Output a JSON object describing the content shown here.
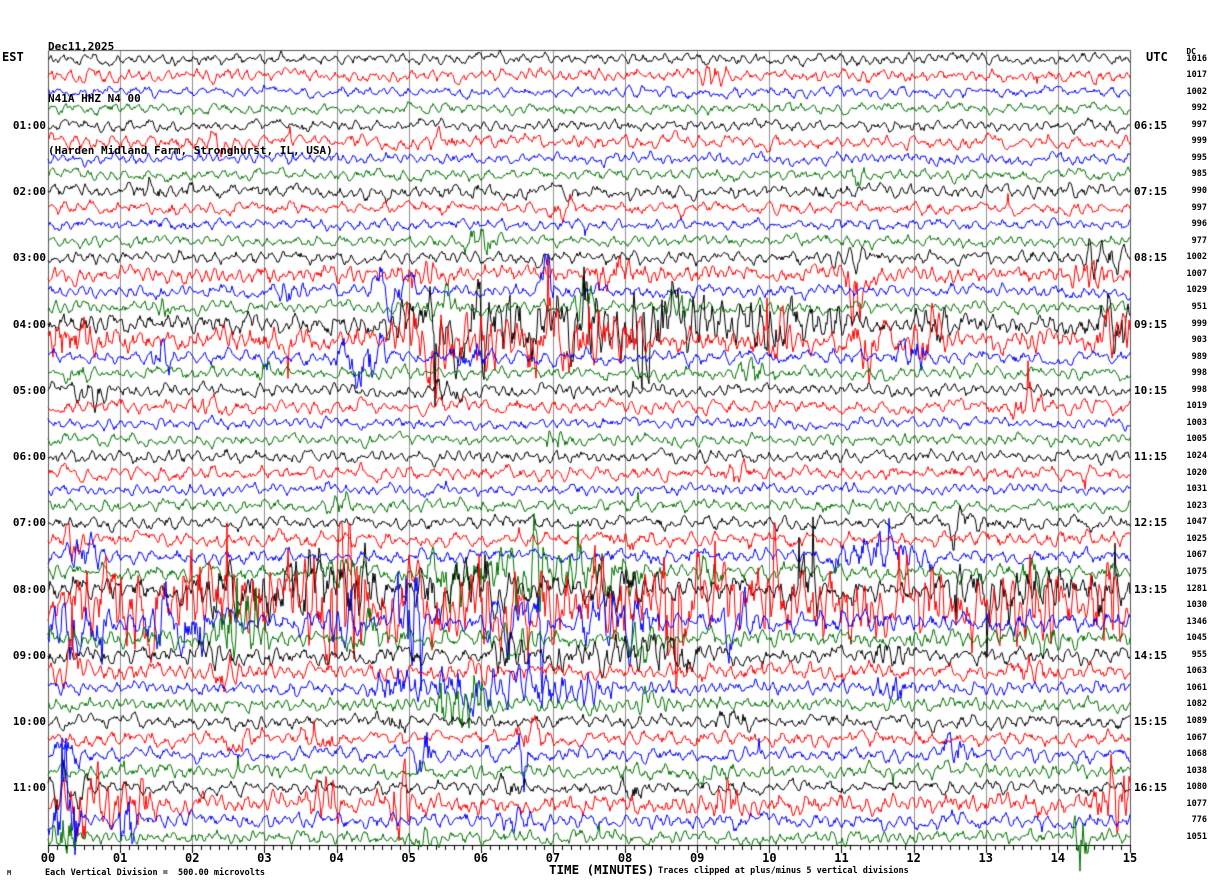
{
  "header": {
    "date": "Dec11,2025",
    "station": "N41A HHZ N4 00",
    "location": "(Harden Midland Farm, Stronghurst, IL, USA)"
  },
  "axes": {
    "left_label": "EST",
    "right_label": "UTC",
    "dc_label": "DC",
    "x_title": "TIME (MINUTES)",
    "x_ticks": [
      "00",
      "01",
      "02",
      "03",
      "04",
      "05",
      "06",
      "07",
      "08",
      "09",
      "10",
      "11",
      "12",
      "13",
      "14",
      "15"
    ]
  },
  "footer": {
    "left_note": "Each Vertical Division =  500.00 microvolts",
    "right_note": "Traces clipped at plus/minus 5 vertical divisions",
    "watermark": "M"
  },
  "chart_data": {
    "type": "line",
    "kind": "helicorder-seismogram",
    "title": "N41A HHZ N4 00 seismogram, Dec11,2025",
    "xlabel": "TIME (MINUTES)",
    "x_range": [
      0,
      15
    ],
    "minutes_per_row": 15,
    "rows_per_hour": 4,
    "clip_divisions": 5,
    "microvolts_per_division": 500.0,
    "grid": true,
    "colors": {
      "black": "#000000",
      "red": "#ff0000",
      "blue": "#0000ff",
      "green": "#007300",
      "grid": "#8f8f8f",
      "border": "#555555",
      "axis": "#000000"
    },
    "rows": [
      {
        "color": "black",
        "dc": 1016,
        "est": "",
        "utc": "",
        "amp": 5,
        "bursts": []
      },
      {
        "color": "red",
        "dc": 1017,
        "est": "",
        "utc": "",
        "amp": 5.5,
        "bursts": [
          [
            9.1,
            9.4,
            10
          ]
        ]
      },
      {
        "color": "blue",
        "dc": 1002,
        "est": "",
        "utc": "",
        "amp": 5,
        "bursts": []
      },
      {
        "color": "green",
        "dc": 992,
        "est": "",
        "utc": "",
        "amp": 5,
        "bursts": []
      },
      {
        "color": "black",
        "dc": 997,
        "est": "01:00",
        "utc": "06:15",
        "amp": 5,
        "bursts": []
      },
      {
        "color": "red",
        "dc": 999,
        "est": "",
        "utc": "",
        "amp": 6,
        "bursts": [
          [
            2.2,
            2.5,
            9
          ],
          [
            5.3,
            5.6,
            9
          ]
        ]
      },
      {
        "color": "blue",
        "dc": 995,
        "est": "",
        "utc": "",
        "amp": 5,
        "bursts": []
      },
      {
        "color": "green",
        "dc": 985,
        "est": "",
        "utc": "",
        "amp": 5,
        "bursts": [
          [
            11.1,
            11.3,
            8
          ]
        ]
      },
      {
        "color": "black",
        "dc": 990,
        "est": "02:00",
        "utc": "07:15",
        "amp": 6,
        "bursts": [
          [
            1.3,
            1.6,
            8
          ]
        ]
      },
      {
        "color": "red",
        "dc": 997,
        "est": "",
        "utc": "",
        "amp": 5.5,
        "bursts": [
          [
            7.0,
            7.3,
            8
          ]
        ]
      },
      {
        "color": "blue",
        "dc": 996,
        "est": "",
        "utc": "",
        "amp": 5,
        "bursts": []
      },
      {
        "color": "green",
        "dc": 977,
        "est": "",
        "utc": "",
        "amp": 5,
        "bursts": [
          [
            5.8,
            6.2,
            14
          ]
        ]
      },
      {
        "color": "black",
        "dc": 1002,
        "est": "03:00",
        "utc": "08:15",
        "amp": 5.5,
        "bursts": [
          [
            10.9,
            11.3,
            10
          ],
          [
            14.3,
            14.9,
            12
          ]
        ]
      },
      {
        "color": "red",
        "dc": 1007,
        "est": "",
        "utc": "",
        "amp": 7,
        "bursts": [
          [
            4.9,
            5.3,
            16
          ],
          [
            7.6,
            8.1,
            18
          ],
          [
            11.15,
            11.3,
            70
          ],
          [
            14.2,
            14.6,
            18
          ]
        ]
      },
      {
        "color": "blue",
        "dc": 1029,
        "est": "",
        "utc": "",
        "amp": 5.5,
        "bursts": [
          [
            3.2,
            3.5,
            12
          ],
          [
            4.5,
            5.1,
            20
          ],
          [
            6.85,
            6.95,
            45
          ]
        ]
      },
      {
        "color": "green",
        "dc": 951,
        "est": "",
        "utc": "",
        "amp": 5.5,
        "bursts": [
          [
            1.5,
            1.7,
            12
          ],
          [
            5.3,
            5.6,
            18
          ],
          [
            7.35,
            7.5,
            55
          ],
          [
            8.6,
            8.9,
            16
          ]
        ]
      },
      {
        "color": "black",
        "dc": 999,
        "est": "04:00",
        "utc": "09:15",
        "amp": 9,
        "bursts": [
          [
            4.6,
            5.2,
            18
          ],
          [
            5.3,
            6.6,
            34
          ],
          [
            6.7,
            9.3,
            30
          ],
          [
            8.15,
            8.25,
            85
          ],
          [
            9.4,
            11,
            13
          ],
          [
            12,
            12.6,
            16
          ],
          [
            14.6,
            15,
            22
          ]
        ]
      },
      {
        "color": "red",
        "dc": 903,
        "est": "",
        "utc": "",
        "amp": 10,
        "bursts": [
          [
            0,
            0.6,
            18
          ],
          [
            4.8,
            5.6,
            30
          ],
          [
            5.7,
            8.3,
            24
          ],
          [
            9.9,
            10.3,
            18
          ],
          [
            11.2,
            11.6,
            28
          ],
          [
            12.0,
            12.4,
            22
          ],
          [
            14.5,
            15,
            26
          ]
        ]
      },
      {
        "color": "blue",
        "dc": 989,
        "est": "",
        "utc": "",
        "amp": 6,
        "bursts": [
          [
            1.4,
            1.8,
            14
          ],
          [
            4.0,
            4.7,
            22
          ],
          [
            5.6,
            6.0,
            14
          ],
          [
            11.8,
            12.2,
            18
          ]
        ]
      },
      {
        "color": "green",
        "dc": 998,
        "est": "",
        "utc": "",
        "amp": 5.5,
        "bursts": [
          [
            0.3,
            0.5,
            12
          ],
          [
            2.9,
            3.2,
            14
          ],
          [
            9.6,
            9.9,
            12
          ]
        ]
      },
      {
        "color": "black",
        "dc": 998,
        "est": "05:00",
        "utc": "10:15",
        "amp": 5.5,
        "bursts": [
          [
            0.4,
            0.8,
            12
          ],
          [
            5.4,
            5.7,
            10
          ]
        ]
      },
      {
        "color": "red",
        "dc": 1019,
        "est": "",
        "utc": "",
        "amp": 6,
        "bursts": [
          [
            2.1,
            2.4,
            12
          ],
          [
            13.4,
            13.8,
            13
          ]
        ]
      },
      {
        "color": "blue",
        "dc": 1003,
        "est": "",
        "utc": "",
        "amp": 5,
        "bursts": []
      },
      {
        "color": "green",
        "dc": 1005,
        "est": "",
        "utc": "",
        "amp": 5,
        "bursts": [
          [
            6.9,
            7.2,
            10
          ]
        ]
      },
      {
        "color": "black",
        "dc": 1024,
        "est": "06:00",
        "utc": "11:15",
        "amp": 5.5,
        "bursts": []
      },
      {
        "color": "red",
        "dc": 1020,
        "est": "",
        "utc": "",
        "amp": 6,
        "bursts": [
          [
            9.4,
            9.7,
            11
          ]
        ]
      },
      {
        "color": "blue",
        "dc": 1031,
        "est": "",
        "utc": "",
        "amp": 5,
        "bursts": []
      },
      {
        "color": "green",
        "dc": 1023,
        "est": "",
        "utc": "",
        "amp": 5.5,
        "bursts": [
          [
            3.9,
            4.2,
            10
          ]
        ]
      },
      {
        "color": "black",
        "dc": 1047,
        "est": "07:00",
        "utc": "12:15",
        "amp": 6,
        "bursts": [
          [
            12.5,
            12.9,
            10
          ]
        ]
      },
      {
        "color": "red",
        "dc": 1025,
        "est": "",
        "utc": "",
        "amp": 6.5,
        "bursts": [
          [
            0.25,
            0.45,
            35
          ],
          [
            7.8,
            8.2,
            11
          ]
        ]
      },
      {
        "color": "blue",
        "dc": 1067,
        "est": "",
        "utc": "",
        "amp": 6.5,
        "bursts": [
          [
            0.3,
            0.7,
            14
          ],
          [
            10.9,
            12.3,
            16
          ]
        ]
      },
      {
        "color": "green",
        "dc": 1075,
        "est": "",
        "utc": "",
        "amp": 7,
        "bursts": [
          [
            3.8,
            4.4,
            14
          ],
          [
            5.2,
            8.2,
            22
          ],
          [
            6.75,
            6.85,
            60
          ],
          [
            9.0,
            9.3,
            16
          ],
          [
            13.5,
            13.9,
            15
          ]
        ]
      },
      {
        "color": "black",
        "dc": 1281,
        "est": "08:00",
        "utc": "13:15",
        "amp": 11,
        "bursts": [
          [
            2.2,
            4.6,
            26
          ],
          [
            5.0,
            6.5,
            16
          ],
          [
            7.5,
            8.2,
            14
          ],
          [
            10.3,
            10.7,
            18
          ],
          [
            12.5,
            14.3,
            18
          ],
          [
            14.4,
            15,
            16
          ]
        ]
      },
      {
        "color": "red",
        "dc": 1030,
        "est": "",
        "utc": "",
        "amp": 15,
        "bursts": [
          [
            0.4,
            1.6,
            30
          ],
          [
            1.8,
            4.5,
            38
          ],
          [
            3.9,
            4.3,
            85
          ],
          [
            4.6,
            9.5,
            26
          ],
          [
            8.5,
            8.8,
            85
          ],
          [
            9.6,
            12.0,
            24
          ],
          [
            12.1,
            14.2,
            26
          ],
          [
            14.5,
            14.9,
            60
          ]
        ]
      },
      {
        "color": "blue",
        "dc": 1346,
        "est": "",
        "utc": "",
        "amp": 9,
        "bursts": [
          [
            0.0,
            0.8,
            32
          ],
          [
            1.4,
            2.2,
            22
          ],
          [
            3.9,
            4.3,
            22
          ],
          [
            4.85,
            5.15,
            85
          ],
          [
            6.1,
            6.9,
            28
          ],
          [
            7.4,
            8.3,
            22
          ],
          [
            9.3,
            9.7,
            14
          ]
        ]
      },
      {
        "color": "green",
        "dc": 1045,
        "est": "",
        "utc": "",
        "amp": 7.5,
        "bursts": [
          [
            2.3,
            3.0,
            38
          ],
          [
            4.2,
            4.6,
            18
          ],
          [
            6.3,
            6.7,
            14
          ],
          [
            8.0,
            8.4,
            14
          ],
          [
            13.6,
            14.0,
            16
          ]
        ]
      },
      {
        "color": "black",
        "dc": 955,
        "est": "09:00",
        "utc": "14:15",
        "amp": 7.5,
        "bursts": [
          [
            2.0,
            2.4,
            11
          ],
          [
            6.2,
            6.7,
            14
          ],
          [
            7.0,
            9.0,
            12
          ],
          [
            11.5,
            11.9,
            11
          ]
        ]
      },
      {
        "color": "red",
        "dc": 1063,
        "est": "",
        "utc": "",
        "amp": 7,
        "bursts": [
          [
            0.1,
            0.5,
            26
          ],
          [
            2.3,
            2.7,
            13
          ],
          [
            5.8,
            6.2,
            11
          ],
          [
            13.5,
            13.8,
            14
          ]
        ]
      },
      {
        "color": "blue",
        "dc": 1061,
        "est": "",
        "utc": "",
        "amp": 6,
        "bursts": [
          [
            4.5,
            7.8,
            16
          ],
          [
            11.5,
            11.9,
            10
          ]
        ]
      },
      {
        "color": "green",
        "dc": 1082,
        "est": "",
        "utc": "",
        "amp": 6,
        "bursts": [
          [
            5.3,
            6.1,
            26
          ],
          [
            8.2,
            8.6,
            12
          ]
        ]
      },
      {
        "color": "black",
        "dc": 1089,
        "est": "10:00",
        "utc": "15:15",
        "amp": 6,
        "bursts": [
          [
            4.6,
            4.9,
            10
          ],
          [
            9.3,
            9.7,
            9
          ]
        ]
      },
      {
        "color": "red",
        "dc": 1067,
        "est": "",
        "utc": "",
        "amp": 6.5,
        "bursts": [
          [
            2.5,
            2.9,
            11
          ],
          [
            3.5,
            3.9,
            12
          ],
          [
            6.5,
            6.9,
            11
          ]
        ]
      },
      {
        "color": "blue",
        "dc": 1068,
        "est": "",
        "utc": "",
        "amp": 6,
        "bursts": [
          [
            0.1,
            0.5,
            14
          ],
          [
            5.15,
            5.25,
            65
          ],
          [
            6.5,
            6.6,
            55
          ],
          [
            12.4,
            12.8,
            12
          ]
        ]
      },
      {
        "color": "green",
        "dc": 1038,
        "est": "",
        "utc": "",
        "amp": 6,
        "bursts": [
          [
            9.0,
            9.4,
            11
          ]
        ]
      },
      {
        "color": "black",
        "dc": 1080,
        "est": "11:00",
        "utc": "16:15",
        "amp": 6,
        "bursts": [
          [
            0.0,
            0.5,
            22
          ],
          [
            6.3,
            6.6,
            13
          ],
          [
            7.9,
            8.3,
            11
          ]
        ]
      },
      {
        "color": "red",
        "dc": 1077,
        "est": "",
        "utc": "",
        "amp": 8.5,
        "bursts": [
          [
            0.2,
            1.5,
            28
          ],
          [
            3.6,
            4.0,
            14
          ],
          [
            4.82,
            4.95,
            90
          ],
          [
            9.2,
            9.6,
            14
          ],
          [
            14.55,
            15,
            32
          ]
        ]
      },
      {
        "color": "blue",
        "dc": 776,
        "est": "",
        "utc": "",
        "amp": 6.5,
        "bursts": [
          [
            0.05,
            0.4,
            80
          ],
          [
            1.05,
            1.15,
            55
          ],
          [
            6.3,
            6.7,
            11
          ],
          [
            9.3,
            9.6,
            11
          ]
        ]
      },
      {
        "color": "green",
        "dc": 1051,
        "est": "",
        "utc": "",
        "amp": 6,
        "bursts": [
          [
            0.05,
            0.35,
            26
          ],
          [
            5.0,
            5.3,
            11
          ],
          [
            14.25,
            14.35,
            90
          ]
        ]
      }
    ]
  }
}
